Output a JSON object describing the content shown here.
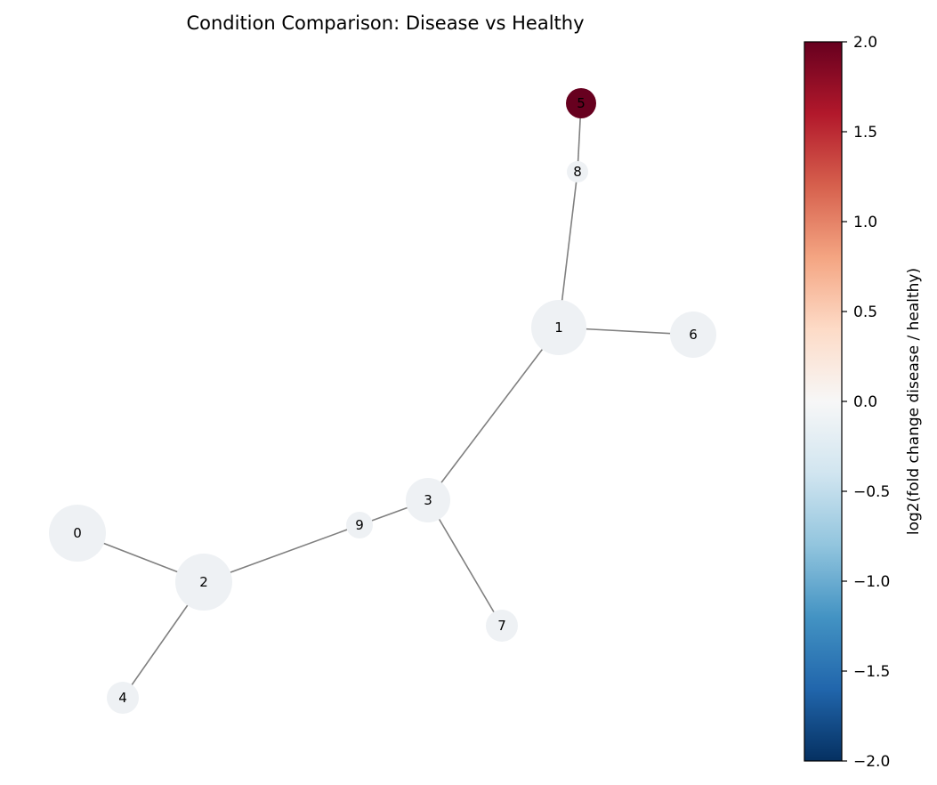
{
  "title": "Condition Comparison: Disease vs Healthy",
  "colorbar": {
    "label": "log2(fold change disease / healthy)",
    "range": [
      -2.0,
      2.0
    ],
    "ticks": [
      {
        "value": 2.0,
        "label": "2.0"
      },
      {
        "value": 1.5,
        "label": "1.5"
      },
      {
        "value": 1.0,
        "label": "1.0"
      },
      {
        "value": 0.5,
        "label": "0.5"
      },
      {
        "value": 0.0,
        "label": "0.0"
      },
      {
        "value": -0.5,
        "label": "−0.5"
      },
      {
        "value": -1.0,
        "label": "−1.0"
      },
      {
        "value": -1.5,
        "label": "−1.5"
      },
      {
        "value": -2.0,
        "label": "−2.0"
      }
    ],
    "colormap": "RdBu_r",
    "stops": [
      "#053061",
      "#2166ac",
      "#4393c3",
      "#92c5de",
      "#d1e5f0",
      "#f7f7f7",
      "#fddbc7",
      "#f4a582",
      "#d6604d",
      "#b2182b",
      "#67001f"
    ]
  },
  "graph": {
    "nodes": [
      {
        "id": "0",
        "label": "0",
        "value": 0.0
      },
      {
        "id": "1",
        "label": "1",
        "value": 0.0
      },
      {
        "id": "2",
        "label": "2",
        "value": 0.0
      },
      {
        "id": "3",
        "label": "3",
        "value": 0.0
      },
      {
        "id": "4",
        "label": "4",
        "value": 0.0
      },
      {
        "id": "5",
        "label": "5",
        "value": 2.0
      },
      {
        "id": "6",
        "label": "6",
        "value": 0.0
      },
      {
        "id": "7",
        "label": "7",
        "value": 0.0
      },
      {
        "id": "8",
        "label": "8",
        "value": 0.0
      },
      {
        "id": "9",
        "label": "9",
        "value": 0.0
      }
    ],
    "edges": [
      [
        "5",
        "8"
      ],
      [
        "8",
        "1"
      ],
      [
        "1",
        "6"
      ],
      [
        "1",
        "3"
      ],
      [
        "3",
        "9"
      ],
      [
        "3",
        "7"
      ],
      [
        "9",
        "2"
      ],
      [
        "2",
        "0"
      ],
      [
        "2",
        "4"
      ]
    ]
  },
  "colors": {
    "edge": "#808080",
    "neutral_node": "#eef1f4",
    "high_node": "#67001f"
  }
}
